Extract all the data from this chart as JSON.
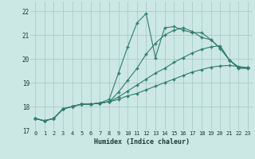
{
  "background_color": "#cce8e4",
  "grid_color": "#aaccc8",
  "line_color": "#2e7d6e",
  "xlabel": "Humidex (Indice chaleur)",
  "xlim": [
    -0.5,
    23.5
  ],
  "ylim": [
    17.0,
    22.4
  ],
  "yticks": [
    17,
    18,
    19,
    20,
    21,
    22
  ],
  "xticks": [
    0,
    1,
    2,
    3,
    4,
    5,
    6,
    7,
    8,
    9,
    10,
    11,
    12,
    13,
    14,
    15,
    16,
    17,
    18,
    19,
    20,
    21,
    22,
    23
  ],
  "series": [
    [
      17.5,
      17.4,
      17.5,
      17.9,
      18.0,
      18.1,
      18.1,
      18.15,
      18.3,
      19.4,
      20.5,
      21.5,
      21.9,
      20.05,
      21.3,
      21.35,
      21.2,
      21.1,
      21.1,
      20.8,
      20.45,
      19.95,
      19.6,
      19.6
    ],
    [
      17.5,
      17.4,
      17.5,
      17.9,
      18.0,
      18.1,
      18.1,
      18.15,
      18.2,
      18.3,
      18.45,
      18.55,
      18.7,
      18.85,
      19.0,
      19.15,
      19.3,
      19.45,
      19.55,
      19.65,
      19.7,
      19.72,
      19.68,
      19.62
    ],
    [
      17.5,
      17.4,
      17.5,
      17.9,
      18.0,
      18.1,
      18.1,
      18.15,
      18.2,
      18.4,
      18.65,
      18.9,
      19.15,
      19.4,
      19.6,
      19.85,
      20.05,
      20.25,
      20.4,
      20.5,
      20.55,
      19.95,
      19.65,
      19.62
    ],
    [
      17.5,
      17.4,
      17.5,
      17.9,
      18.0,
      18.1,
      18.1,
      18.15,
      18.2,
      18.6,
      19.1,
      19.6,
      20.2,
      20.65,
      21.0,
      21.2,
      21.3,
      21.15,
      20.9,
      20.8,
      20.45,
      19.95,
      19.65,
      19.62
    ]
  ],
  "marker": "+",
  "markersize": 3.5,
  "linewidth": 0.8
}
